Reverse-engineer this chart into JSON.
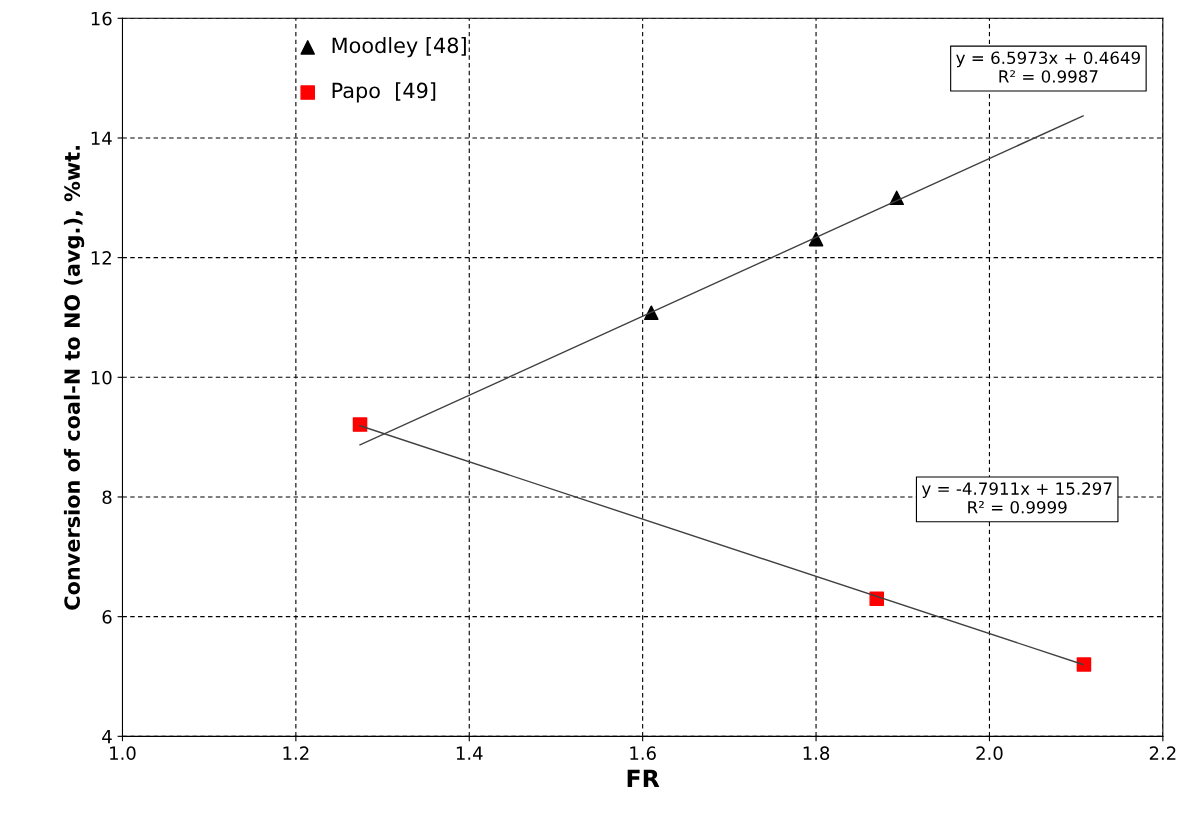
{
  "chart_data": {
    "type": "scatter",
    "xlabel": "FR",
    "ylabel": "Conversion of coal-N to NO (avg.), %wt.",
    "xlim": [
      1.0,
      2.2
    ],
    "xticks": [
      {
        "value": 1.0,
        "label": "1.0"
      },
      {
        "value": 1.2,
        "label": "1.2"
      },
      {
        "value": 1.4,
        "label": "1.4"
      },
      {
        "value": 1.6,
        "label": "1.6"
      },
      {
        "value": 1.8,
        "label": "1.8"
      },
      {
        "value": 2.0,
        "label": "2.0"
      },
      {
        "value": 2.2,
        "label": "2.2"
      }
    ],
    "ylim": [
      4,
      16
    ],
    "yticks": [
      4,
      6,
      8,
      10,
      12,
      14,
      16
    ],
    "grid": true,
    "legend": "top left",
    "series": [
      {
        "name": "Moodley [48]",
        "color": "#000000",
        "marker": "triangle",
        "x": [
          1.61,
          1.8,
          1.893
        ],
        "values": [
          11.08,
          12.31,
          13.0
        ]
      },
      {
        "name": "Papo  [49]",
        "color": "#ff0000",
        "marker": "square",
        "x": [
          1.274,
          1.87,
          2.109
        ],
        "values": [
          9.21,
          6.3,
          5.2
        ]
      },
      {
        "type": "line",
        "color": "#404040",
        "x": [
          1.274,
          2.108
        ],
        "values": [
          8.87,
          14.37
        ]
      },
      {
        "type": "line",
        "color": "#404040",
        "x": [
          1.274,
          2.108
        ],
        "values": [
          9.19,
          5.2
        ]
      }
    ],
    "annotations": [
      "y = 6.5973x + 0.4649\nR² = 0.9987",
      "y = -4.7911x + 15.297\nR² = 0.9999"
    ]
  }
}
